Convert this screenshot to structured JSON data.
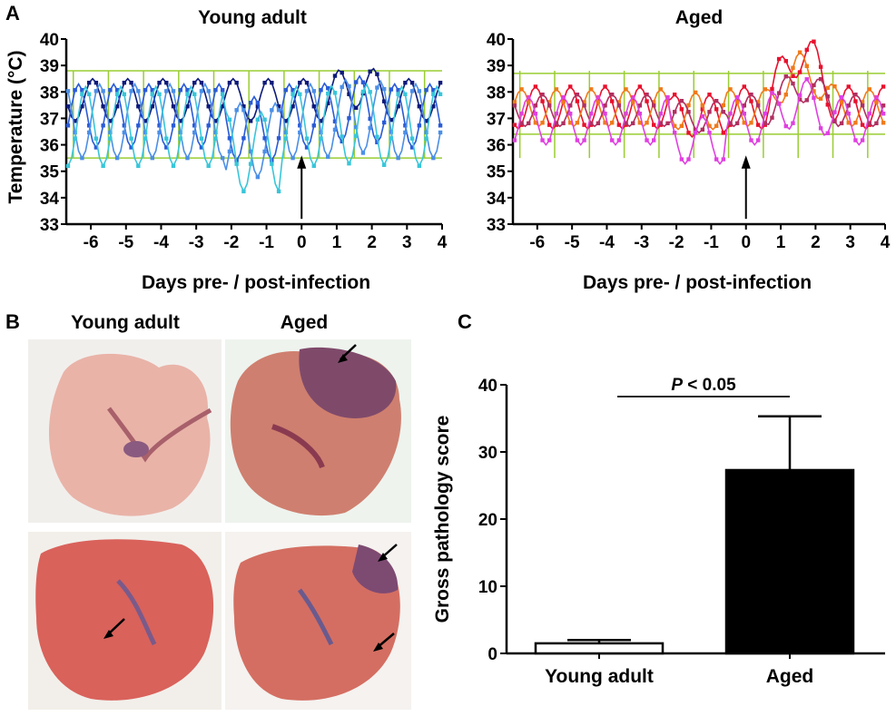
{
  "panel_labels": {
    "a": "A",
    "b": "B",
    "c": "C"
  },
  "photo_labels": {
    "young": "Young adult",
    "aged": "Aged"
  },
  "colors": {
    "threshold": "#9acd32",
    "young_series": [
      "#0d1a7a",
      "#2a5bd7",
      "#4b8fe6",
      "#38c6d9",
      "#5fe0e0"
    ],
    "aged_series": [
      "#e8112d",
      "#f07a1a",
      "#b03060",
      "#e040e0",
      "#9b59b6"
    ],
    "bar_young": "#ffffff",
    "bar_aged": "#000000",
    "lung_tissue": "#d97a70"
  },
  "chart_data": [
    {
      "type": "line",
      "title": "Young adult",
      "xlabel": "Days pre- / post-infection",
      "ylabel": "Temperature (°C)",
      "xlim": [
        -6.7,
        4
      ],
      "ylim": [
        33,
        40
      ],
      "x_ticks": [
        -6,
        -5,
        -4,
        -3,
        -2,
        -1,
        0,
        1,
        2,
        3,
        4
      ],
      "y_ticks": [
        33,
        34,
        35,
        36,
        37,
        38,
        39,
        40
      ],
      "grid": "vertical lines at half-days",
      "reference_lines": [
        38.8,
        35.5
      ],
      "infection_day": 0,
      "series": [
        {
          "sid": "y1",
          "mean": 37.7,
          "amp": 0.8,
          "phase": 0.2,
          "dip": 0,
          "fever": 0.5,
          "step": 0.1
        },
        {
          "sid": "y2",
          "mean": 37.1,
          "amp": 1.2,
          "phase": 0.6,
          "dip": 0.8,
          "fever": 0.3,
          "step": 0.1
        },
        {
          "sid": "y3",
          "mean": 36.9,
          "amp": 1.4,
          "phase": 1.0,
          "dip": 1.2,
          "fever": 0.2,
          "step": 0.1
        },
        {
          "sid": "y4",
          "mean": 36.7,
          "amp": 1.5,
          "phase": 1.4,
          "dip": 1.6,
          "fever": 0.1,
          "step": 0.1
        }
      ]
    },
    {
      "type": "line",
      "title": "Aged",
      "xlabel": "Days pre- / post-infection",
      "ylabel": "",
      "xlim": [
        -6.7,
        4
      ],
      "ylim": [
        33,
        40
      ],
      "x_ticks": [
        -6,
        -5,
        -4,
        -3,
        -2,
        -1,
        0,
        1,
        2,
        3,
        4
      ],
      "y_ticks": [
        33,
        34,
        35,
        36,
        37,
        38,
        39,
        40
      ],
      "grid": "vertical lines at half-days",
      "reference_lines": [
        38.7,
        36.4
      ],
      "infection_day": 0,
      "series": [
        {
          "sid": "a1",
          "mean": 37.4,
          "amp": 0.8,
          "phase": 0.3,
          "dip": 0.5,
          "fever": 2.0,
          "step": 0.1
        },
        {
          "sid": "a2",
          "mean": 37.4,
          "amp": 0.7,
          "phase": 0.7,
          "dip": 0.2,
          "fever": 1.4,
          "step": 0.1
        },
        {
          "sid": "a3",
          "mean": 37.3,
          "amp": 0.6,
          "phase": 1.1,
          "dip": 0.4,
          "fever": 0.9,
          "step": 0.1
        },
        {
          "sid": "a4",
          "mean": 36.9,
          "amp": 0.9,
          "phase": 1.5,
          "dip": 1.2,
          "fever": 0.7,
          "step": 0.1
        }
      ]
    },
    {
      "type": "bar",
      "categories": [
        "Young adult",
        "Aged"
      ],
      "values": [
        1.5,
        27.3
      ],
      "error_upper": [
        0.5,
        8.0
      ],
      "ylabel": "Gross pathology score",
      "ylim": [
        0,
        40
      ],
      "y_ticks": [
        0,
        10,
        20,
        30,
        40
      ],
      "significance": {
        "italic": "P",
        "rest": " < 0.05"
      }
    }
  ]
}
